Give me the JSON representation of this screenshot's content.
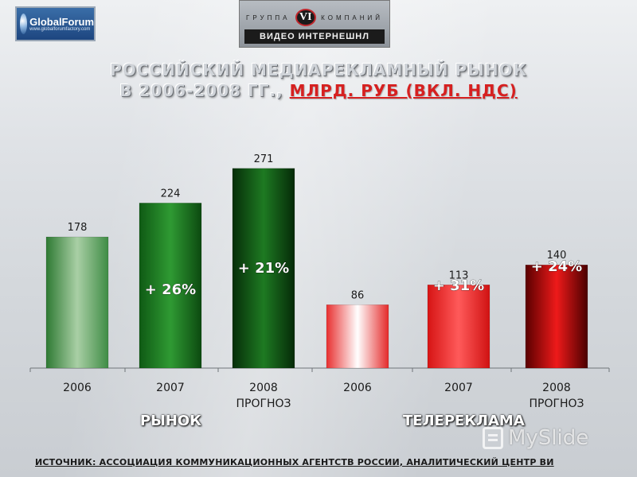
{
  "logos": {
    "globalforum": {
      "name": "GlobalForum",
      "site": "www.globalforumfactory.com"
    },
    "videointernational": {
      "group_left": "ГРУППА",
      "mark": "VI",
      "group_right": "КОМПАНИЙ",
      "brand": "ВИДЕО ИНТЕРНЕШНЛ"
    }
  },
  "title": {
    "line1": "РОССИЙСКИЙ МЕДИАРЕКЛАМНЫЙ РЫНОК",
    "line2_prefix": "В 2006-2008 ГГ.,",
    "line2_unit": "МЛРД. РУБ (ВКЛ. НДС)"
  },
  "groups": {
    "market": "РЫНОК",
    "tv": "ТЕЛЕРЕКЛАМА"
  },
  "watermark": "MySlide",
  "source": "ИСТОЧНИК: АССОЦИАЦИЯ КОММУНИКАЦИОННЫХ АГЕНТСТВ РОССИИ, АНАЛИТИЧЕСКИЙ ЦЕНТР ВИ",
  "colors": {
    "market": "#1e7a22",
    "tv": "#e01b1b",
    "unit_text": "#d62020"
  },
  "chart_data": {
    "type": "bar",
    "categories": [
      "2006",
      "2007",
      "2008",
      "2006",
      "2007",
      "2008"
    ],
    "sub_labels": [
      "",
      "",
      "ПРОГНОЗ",
      "",
      "",
      "ПРОГНОЗ"
    ],
    "values": [
      178,
      224,
      271,
      86,
      113,
      140
    ],
    "growth_labels": [
      "",
      "+ 26%",
      "+ 21%",
      "",
      "+ 31%",
      "+ 24%"
    ],
    "bar_groups": [
      "market",
      "market",
      "market",
      "tv",
      "tv",
      "tv"
    ],
    "group_names": [
      "РЫНОК",
      "ТЕЛЕРЕКЛАМА"
    ],
    "grid": false,
    "legend": "none"
  }
}
